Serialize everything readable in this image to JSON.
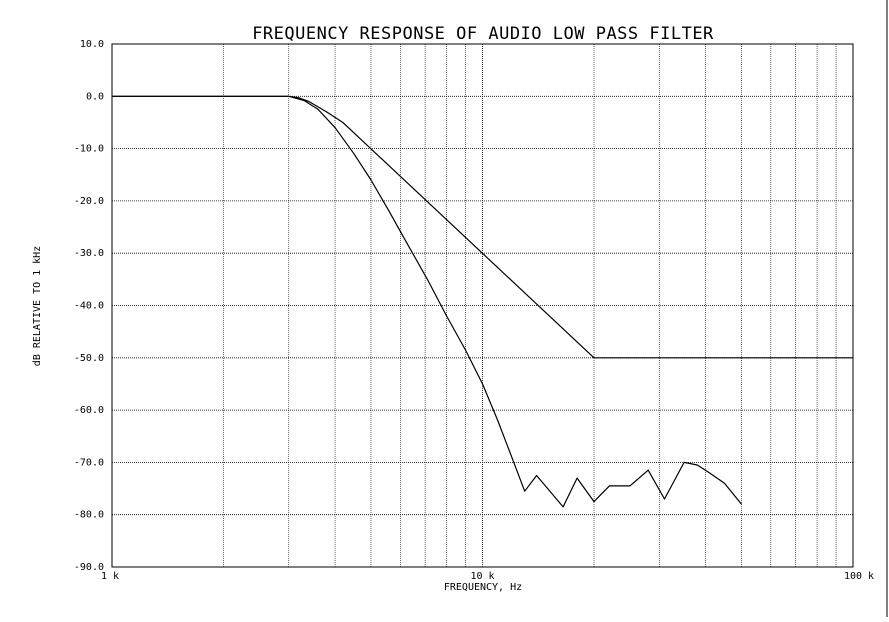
{
  "chart_data": {
    "type": "line",
    "title": "FREQUENCY RESPONSE OF AUDIO LOW PASS FILTER",
    "xlabel": "FREQUENCY, Hz",
    "ylabel": "dB RELATIVE TO 1 kHz",
    "x_scale": "log",
    "xlim": [
      1000,
      100000
    ],
    "ylim": [
      -90,
      10
    ],
    "grid": true,
    "x_tick_values": [
      1000,
      10000,
      100000
    ],
    "x_tick_labels": [
      "1 k",
      "10 k",
      "100 k"
    ],
    "y_tick_values": [
      10,
      0,
      -10,
      -20,
      -30,
      -40,
      -50,
      -60,
      -70,
      -80,
      -90
    ],
    "y_tick_labels": [
      "10.0",
      "0.0",
      "-10.0",
      "-20.0",
      "-30.0",
      "-40.0",
      "-50.0",
      "-60.0",
      "-70.0",
      "-80.0",
      "-90.0"
    ],
    "series": [
      {
        "x": [
          1000,
          2000,
          3000,
          3200,
          3400,
          3800,
          4200,
          20000,
          100000
        ],
        "y": [
          0,
          0,
          0,
          -0.3,
          -1.0,
          -3.0,
          -5.0,
          -50,
          -50
        ]
      },
      {
        "x": [
          1000,
          2000,
          3000,
          3300,
          3600,
          4000,
          4500,
          5000,
          5600,
          6300,
          7100,
          8000,
          9000,
          10000,
          11000,
          12000,
          13000,
          14000,
          15000,
          16500,
          18000,
          20000,
          22000,
          25000,
          28000,
          31000,
          35000,
          38000,
          41000,
          45000,
          50000
        ],
        "y": [
          0,
          0,
          0,
          -0.8,
          -2.5,
          -6,
          -11,
          -16,
          -22,
          -28.5,
          -35,
          -42,
          -48.5,
          -55,
          -62,
          -69,
          -75.5,
          -72.5,
          -75,
          -78.5,
          -73,
          -77.5,
          -74.5,
          -74.5,
          -71.5,
          -77,
          -70,
          -70.5,
          -72,
          -74,
          -78
        ]
      }
    ]
  }
}
